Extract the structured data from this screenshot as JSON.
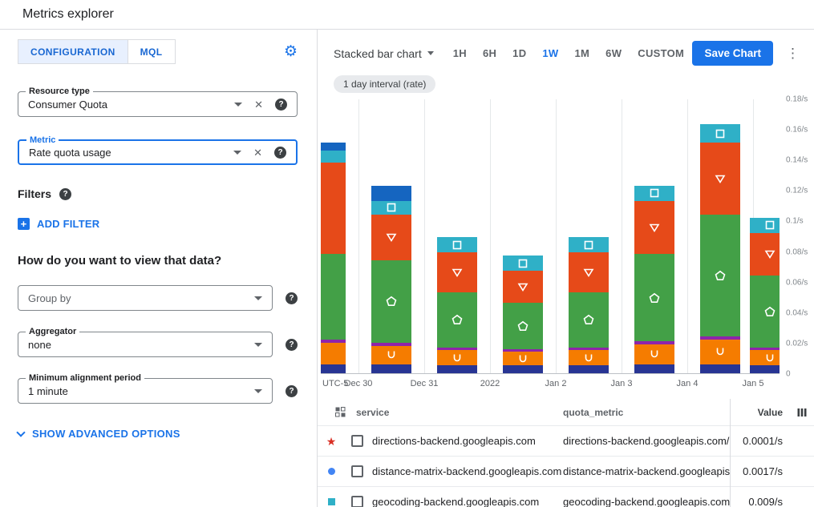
{
  "theme": {
    "accent": "#1a73e8",
    "text": "#202124",
    "muted": "#5f6368"
  },
  "header": {
    "title": "Metrics explorer"
  },
  "panel": {
    "tabs": [
      {
        "label": "CONFIGURATION"
      },
      {
        "label": "MQL"
      }
    ],
    "active_tab": "CONFIGURATION",
    "resource_type": {
      "label": "Resource type",
      "value": "Consumer Quota"
    },
    "metric": {
      "label": "Metric",
      "value": "Rate quota usage"
    },
    "filters_label": "Filters",
    "add_filter_label": "ADD FILTER",
    "view_heading": "How do you want to view that data?",
    "group_by": {
      "placeholder": "Group by"
    },
    "aggregator": {
      "label": "Aggregator",
      "value": "none"
    },
    "alignment_period": {
      "label": "Minimum alignment period",
      "value": "1 minute"
    },
    "advanced_label": "SHOW ADVANCED OPTIONS"
  },
  "toolbar": {
    "chart_type_label": "Stacked bar chart",
    "ranges": [
      "1H",
      "6H",
      "1D",
      "1W",
      "1M",
      "6W",
      "CUSTOM"
    ],
    "active_range": "1W",
    "save_label": "Save Chart"
  },
  "chip": {
    "label": "1 day interval (rate)"
  },
  "chart_data": {
    "type": "bar",
    "stacked": true,
    "title": "",
    "xlabel": "",
    "ylabel": "",
    "unit": "/s",
    "ylim": [
      0,
      0.18
    ],
    "grid": "vertical",
    "legend_position": "table-below",
    "y_ticks": [
      "0.18/s",
      "0.16/s",
      "0.14/s",
      "0.12/s",
      "0.1/s",
      "0.08/s",
      "0.06/s",
      "0.04/s",
      "0.02/s",
      "0"
    ],
    "x_ticks": [
      "Dec 30",
      "Dec 31",
      "2022",
      "Jan 2",
      "Jan 3",
      "Jan 4",
      "Jan 5"
    ],
    "timezone_label": "UTC-5",
    "series": [
      {
        "name": "navy",
        "color": "#283593",
        "marker": "none",
        "values": [
          0.006,
          0.006,
          0.005,
          0.005,
          0.005,
          0.006,
          0.006,
          0.005
        ]
      },
      {
        "name": "orange",
        "color": "#f57c00",
        "marker": "cup",
        "values": [
          0.014,
          0.012,
          0.01,
          0.009,
          0.01,
          0.013,
          0.016,
          0.01
        ]
      },
      {
        "name": "purple",
        "color": "#8e24aa",
        "marker": "none",
        "values": [
          0.002,
          0.002,
          0.002,
          0.002,
          0.002,
          0.002,
          0.002,
          0.002
        ]
      },
      {
        "name": "green",
        "color": "#43a047",
        "marker": "pentagon",
        "values": [
          0.056,
          0.054,
          0.036,
          0.03,
          0.036,
          0.057,
          0.08,
          0.047
        ]
      },
      {
        "name": "red",
        "color": "#e64a19",
        "marker": "triangle-down",
        "values": [
          0.06,
          0.03,
          0.026,
          0.021,
          0.026,
          0.035,
          0.047,
          0.028
        ]
      },
      {
        "name": "teal",
        "color": "#2fb0c7",
        "marker": "square",
        "values": [
          0.008,
          0.009,
          0.01,
          0.01,
          0.01,
          0.01,
          0.012,
          0.01
        ]
      },
      {
        "name": "blue",
        "color": "#1565c0",
        "marker": "none",
        "values": [
          0.005,
          0.01,
          0,
          0,
          0,
          0,
          0,
          0
        ]
      }
    ]
  },
  "table": {
    "columns": [
      {
        "key": "service",
        "label": "service"
      },
      {
        "key": "quota_metric",
        "label": "quota_metric"
      },
      {
        "key": "value",
        "label": "Value"
      }
    ],
    "rows": [
      {
        "marker": "star",
        "marker_color": "#d93025",
        "service": "directions-backend.googleapis.com",
        "quota_metric": "directions-backend.googleapis.com/billabl",
        "value": "0.0001/s"
      },
      {
        "marker": "circle",
        "marker_color": "#4285f4",
        "service": "distance-matrix-backend.googleapis.com",
        "quota_metric": "distance-matrix-backend.googleapis.com/l",
        "value": "0.0017/s"
      },
      {
        "marker": "square",
        "marker_color": "#2fb0c7",
        "service": "geocoding-backend.googleapis.com",
        "quota_metric": "geocoding-backend.googleapis.com/billab",
        "value": "0.009/s"
      }
    ]
  },
  "icons": {
    "gear": "⚙",
    "help": "?",
    "clear": "✕",
    "kebab": "⋮",
    "add": "+",
    "star": "★"
  }
}
